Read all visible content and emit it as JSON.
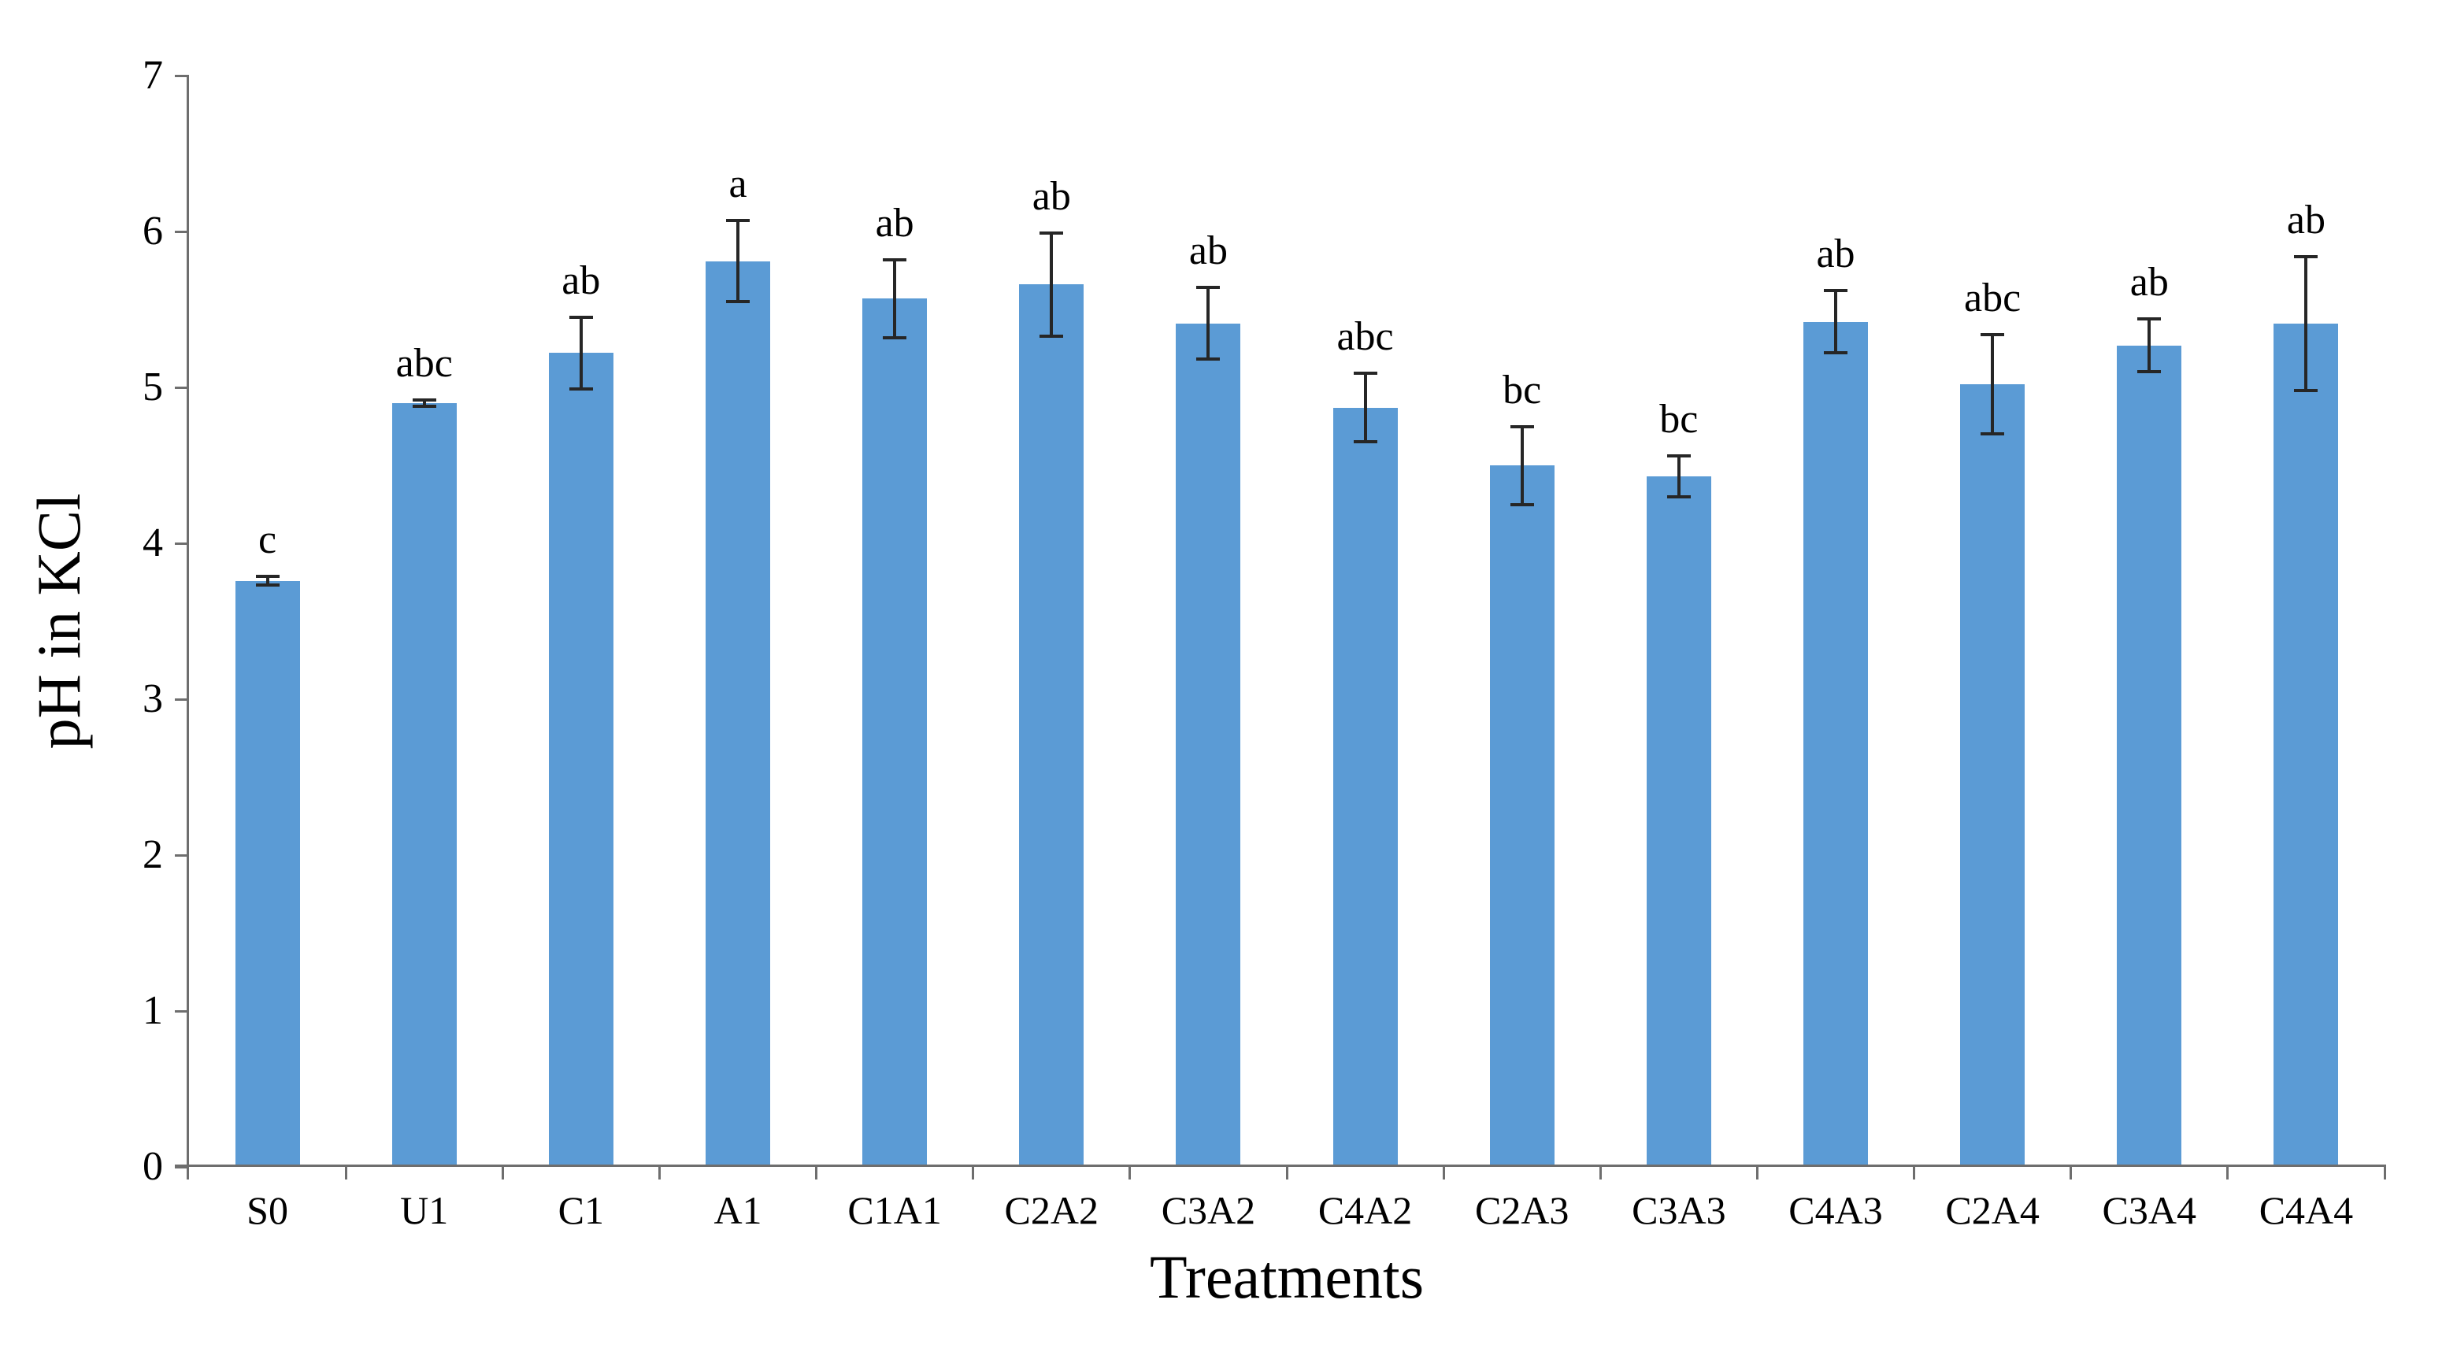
{
  "figure": {
    "background_color": "#ffffff",
    "xlabel": "Treatments",
    "ylabel": "pH in KCl"
  },
  "chart_data": {
    "type": "bar",
    "title": "",
    "xlabel": "Treatments",
    "ylabel": "pH in KCl",
    "categories": [
      "S0",
      "U1",
      "C1",
      "A1",
      "C1A1",
      "C2A2",
      "C3A2",
      "C4A2",
      "C2A3",
      "C3A3",
      "C4A3",
      "C2A4",
      "C3A4",
      "C4A4"
    ],
    "series": [
      {
        "name": "pH in KCl",
        "values": [
          3.76,
          4.9,
          5.22,
          5.81,
          5.57,
          5.66,
          5.41,
          4.87,
          4.5,
          4.43,
          5.42,
          5.02,
          5.27,
          5.41
        ],
        "errors": [
          0.03,
          0.02,
          0.23,
          0.26,
          0.25,
          0.33,
          0.23,
          0.22,
          0.25,
          0.13,
          0.2,
          0.32,
          0.17,
          0.43
        ],
        "significance_letters": [
          "c",
          "abc",
          "ab",
          "a",
          "ab",
          "ab",
          "ab",
          "abc",
          "bc",
          "bc",
          "ab",
          "abc",
          "ab",
          "ab"
        ]
      }
    ],
    "ylim": [
      0,
      7
    ],
    "yticks": [
      0,
      1,
      2,
      3,
      4,
      5,
      6,
      7
    ],
    "grid": false,
    "legend": "none",
    "bar_color": "#5b9bd5",
    "error_bar_color": "#262626",
    "axis_color": "#6e6e6e",
    "text_color": "#000000"
  }
}
